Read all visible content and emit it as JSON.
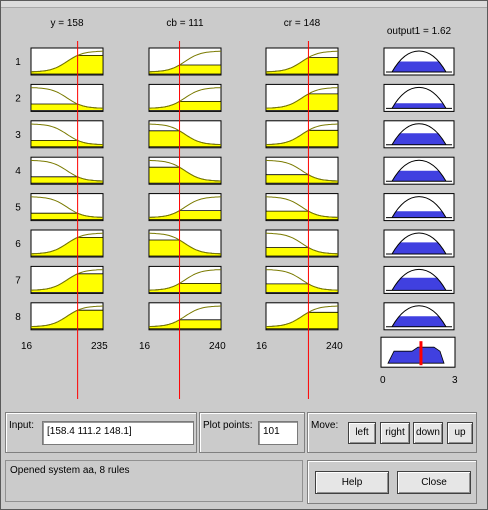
{
  "rule_viewer": {
    "inputs": [
      {
        "label": "y = 158",
        "range": [
          "16",
          "235"
        ],
        "value_fraction": 0.6476
      },
      {
        "label": "cb = 111",
        "range": [
          "16",
          "240"
        ],
        "value_fraction": 0.4241
      },
      {
        "label": "cr = 148",
        "range": [
          "16",
          "240"
        ],
        "value_fraction": 0.5893
      }
    ],
    "output": {
      "label": "output1 = 1.62",
      "range": [
        "0",
        "3"
      ],
      "value_fraction": 0.54
    },
    "rules": [
      "1",
      "2",
      "3",
      "4",
      "5",
      "6",
      "7",
      "8"
    ],
    "rule_mfs": [
      [
        "rise",
        "rise",
        "rise"
      ],
      [
        "fall",
        "rise",
        "rise"
      ],
      [
        "fall",
        "fall",
        "rise"
      ],
      [
        "fall",
        "fall",
        "fall"
      ],
      [
        "fall",
        "rise",
        "fall"
      ],
      [
        "rise",
        "fall",
        "fall"
      ],
      [
        "rise",
        "rise",
        "fall"
      ],
      [
        "rise",
        "rise",
        "rise"
      ]
    ],
    "rule_output_fill": [
      0.5,
      0.25,
      0.55,
      0.5,
      0.3,
      0.55,
      0.6,
      0.5
    ],
    "colors": {
      "input_fill": "#ffff00",
      "output_fill": "#4040e0",
      "index_line": "#ff0000",
      "mf_curve": "#7a7a00"
    }
  },
  "controls": {
    "input_label": "Input:",
    "input_value": "[158.4 111.2 148.1]",
    "plot_points_label": "Plot points:",
    "plot_points_value": "101",
    "move_label": "Move:",
    "move_buttons": [
      "left",
      "right",
      "down",
      "up"
    ],
    "status": "Opened system aa, 8 rules",
    "help_label": "Help",
    "close_label": "Close"
  }
}
